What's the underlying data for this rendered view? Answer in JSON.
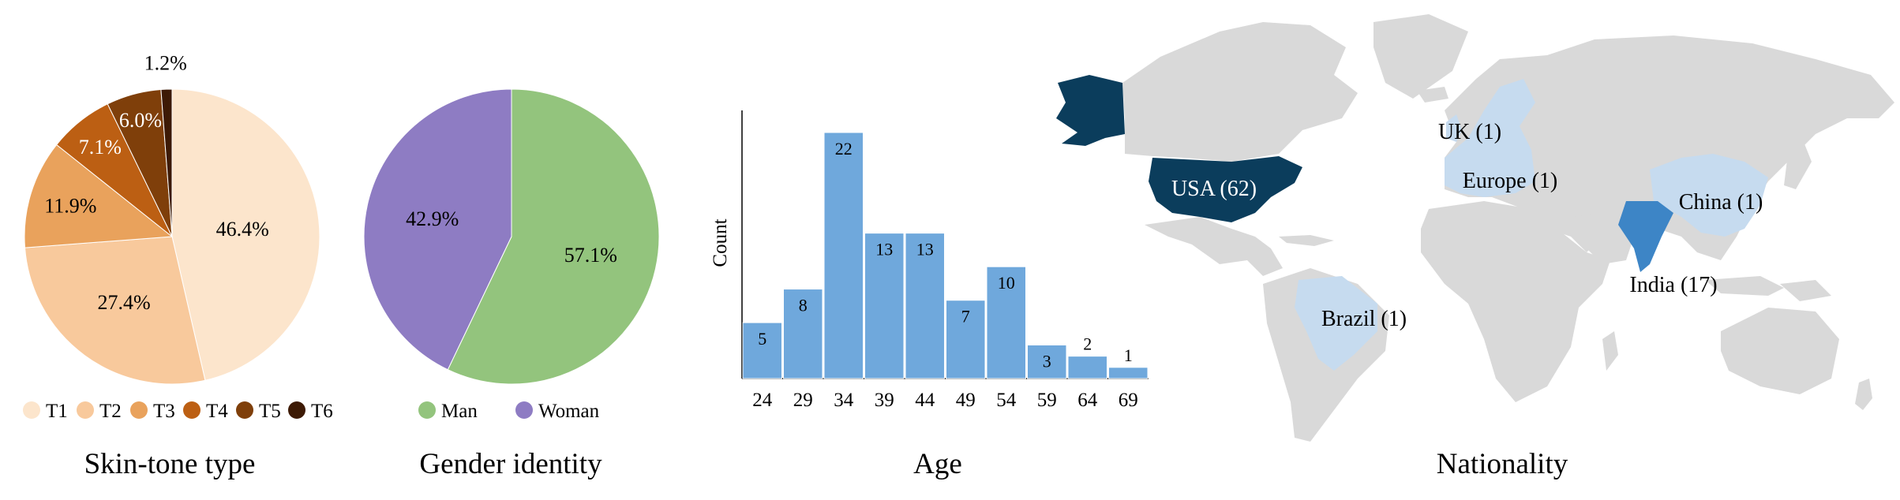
{
  "panels": {
    "skin_tone": {
      "title": "Skin-tone type"
    },
    "gender": {
      "title": "Gender identity"
    },
    "age": {
      "title": "Age"
    },
    "nationality": {
      "title": "Nationality"
    }
  },
  "chart_data": [
    {
      "type": "pie",
      "title": "Skin-tone type",
      "categories": [
        "T1",
        "T2",
        "T3",
        "T4",
        "T5",
        "T6"
      ],
      "values": [
        46.4,
        27.4,
        11.9,
        7.1,
        6.0,
        1.2
      ],
      "labels": [
        "46.4%",
        "27.4%",
        "11.9%",
        "7.1%",
        "6.0%",
        "1.2%"
      ],
      "colors": [
        "#fce5cc",
        "#f8c99c",
        "#e9a25c",
        "#bc5f13",
        "#7f3f0a",
        "#3d1a05"
      ],
      "start": "12 o'clock",
      "direction": "clockwise",
      "legend": "bottom"
    },
    {
      "type": "pie",
      "title": "Gender identity",
      "categories": [
        "Man",
        "Woman"
      ],
      "values": [
        57.1,
        42.9
      ],
      "labels": [
        "57.1%",
        "42.9%"
      ],
      "colors": [
        "#93c47d",
        "#8e7cc3"
      ],
      "start": "12 o'clock",
      "direction": "clockwise",
      "legend": "bottom"
    },
    {
      "type": "bar",
      "title": "Age",
      "ylabel": "Count",
      "xlabel": "",
      "categories": [
        "24",
        "29",
        "34",
        "39",
        "44",
        "49",
        "54",
        "59",
        "64",
        "69"
      ],
      "values": [
        5,
        8,
        22,
        13,
        13,
        7,
        10,
        3,
        2,
        1
      ],
      "data_labels": [
        "5",
        "8",
        "22",
        "13",
        "13",
        "7",
        "10",
        "3",
        "2",
        "1"
      ],
      "ylim": [
        0,
        25
      ],
      "color": "#6fa8dc",
      "grid": false
    },
    {
      "type": "map",
      "title": "Nationality",
      "regions": [
        {
          "label": "USA (62)",
          "name": "USA",
          "count": 62,
          "color": "#0b3d5c"
        },
        {
          "label": "India (17)",
          "name": "India",
          "count": 17,
          "color": "#3d85c6"
        },
        {
          "label": "UK (1)",
          "name": "UK",
          "count": 1,
          "color": "#c6dbef"
        },
        {
          "label": "Europe (1)",
          "name": "Europe",
          "count": 1,
          "color": "#c6dbef"
        },
        {
          "label": "China (1)",
          "name": "China",
          "count": 1,
          "color": "#c6dbef"
        },
        {
          "label": "Brazil (1)",
          "name": "Brazil",
          "count": 1,
          "color": "#c6dbef"
        }
      ],
      "base_color": "#d9d9d9"
    }
  ]
}
